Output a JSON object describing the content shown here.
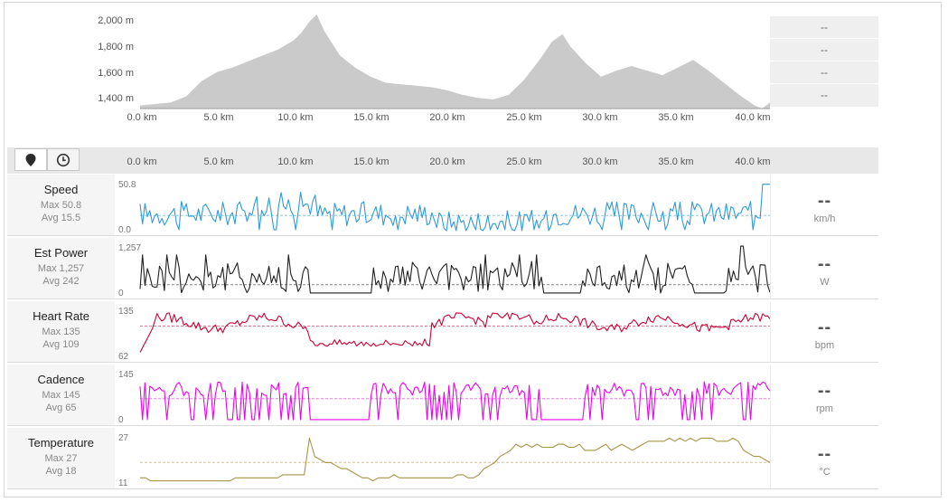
{
  "colors": {
    "elevation_fill": "#cacaca",
    "speed": "#2f9ad9",
    "power": "#1f1f1f",
    "heart_rate": "#cc0033",
    "cadence": "#ee00ee",
    "temperature": "#a89548"
  },
  "elevation": {
    "y_ticks": [
      "2,000 m",
      "1,800 m",
      "1,600 m",
      "1,400 m"
    ],
    "x_ticks": [
      "0.0 km",
      "5.0 km",
      "10.0 km",
      "15.0 km",
      "20.0 km",
      "25.0 km",
      "30.0 km",
      "35.0 km",
      "40.0 km"
    ],
    "stats": [
      "--",
      "--",
      "--",
      "--"
    ]
  },
  "strip": {
    "x_ticks": [
      "0.0 km",
      "5.0 km",
      "10.0 km",
      "15.0 km",
      "20.0 km",
      "25.0 km",
      "30.0 km",
      "35.0 km",
      "40.0 km"
    ],
    "toggles": [
      {
        "name": "distance-toggle",
        "icon": "map-pin-icon"
      },
      {
        "name": "time-toggle",
        "icon": "clock-icon"
      }
    ]
  },
  "metrics": [
    {
      "key": "speed",
      "name": "Speed",
      "max": "Max 50.8",
      "avg": "Avg 15.5",
      "top": "50.8",
      "bottom": "0.0",
      "value": "--",
      "unit": "km/h",
      "avg_frac": 0.31
    },
    {
      "key": "power",
      "name": "Est Power",
      "max": "Max 1,257",
      "avg": "Avg 242",
      "top": "1,257",
      "bottom": "0",
      "value": "--",
      "unit": "W",
      "avg_frac": 0.19
    },
    {
      "key": "heart_rate",
      "name": "Heart Rate",
      "max": "Max 135",
      "avg": "Avg 109",
      "top": "135",
      "bottom": "62",
      "value": "--",
      "unit": "bpm",
      "avg_frac": 0.64
    },
    {
      "key": "cadence",
      "name": "Cadence",
      "max": "Max 145",
      "avg": "Avg 65",
      "top": "145",
      "bottom": "0",
      "value": "--",
      "unit": "rpm",
      "avg_frac": 0.45
    },
    {
      "key": "temperature",
      "name": "Temperature",
      "max": "Max 27",
      "avg": "Avg 18",
      "top": "27",
      "bottom": "11",
      "value": "--",
      "unit": "°C",
      "avg_frac": 0.44
    }
  ],
  "chart_data": [
    {
      "type": "area",
      "x": [
        0,
        1,
        2,
        3,
        4,
        5,
        6,
        7,
        8,
        9,
        10,
        10.5,
        11,
        11.5,
        12,
        13,
        14,
        15,
        16,
        17,
        18,
        19,
        20,
        21,
        22,
        23,
        24,
        25,
        26,
        26.8,
        27.5,
        28,
        29,
        30,
        31,
        32,
        33,
        34,
        35,
        36,
        37,
        38,
        39,
        40,
        40.5,
        41
      ],
      "values": [
        1400,
        1410,
        1420,
        1460,
        1560,
        1620,
        1650,
        1690,
        1730,
        1770,
        1830,
        1880,
        1950,
        2000,
        1890,
        1730,
        1650,
        1590,
        1550,
        1540,
        1530,
        1520,
        1500,
        1470,
        1450,
        1440,
        1470,
        1570,
        1700,
        1820,
        1870,
        1790,
        1680,
        1590,
        1630,
        1660,
        1630,
        1600,
        1650,
        1700,
        1630,
        1550,
        1470,
        1400,
        1380,
        1420
      ],
      "ylim": [
        1380,
        2000
      ],
      "xlim": [
        0,
        41
      ]
    },
    {
      "type": "line",
      "series": [
        {
          "name": "Speed",
          "avg": 15.5,
          "ylim": [
            0,
            50.8
          ]
        },
        {
          "name": "Est Power",
          "avg": 242,
          "ylim": [
            0,
            1257
          ]
        },
        {
          "name": "Heart Rate",
          "avg": 109,
          "ylim": [
            62,
            135
          ]
        },
        {
          "name": "Cadence",
          "avg": 65,
          "ylim": [
            0,
            145
          ]
        },
        {
          "name": "Temperature",
          "avg": 18,
          "ylim": [
            11,
            27
          ]
        }
      ]
    }
  ]
}
